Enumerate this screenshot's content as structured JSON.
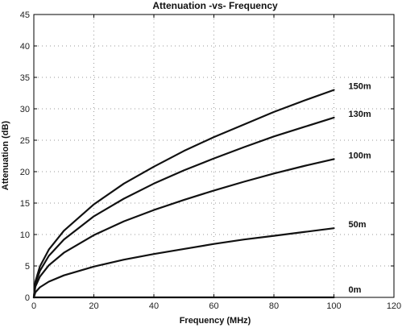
{
  "chart_data": {
    "type": "line",
    "title": "Attenuation -vs- Frequency",
    "xlabel": "Frequency (MHz)",
    "ylabel": "Attenuation (dB)",
    "xlim": [
      0,
      120
    ],
    "ylim": [
      0,
      45
    ],
    "xticks": [
      "0",
      "20",
      "40",
      "60",
      "80",
      "100",
      "120"
    ],
    "yticks": [
      "0",
      "5",
      "10",
      "15",
      "20",
      "25",
      "30",
      "35",
      "40",
      "45"
    ],
    "grid": true,
    "x": [
      0,
      0.5,
      2,
      5,
      10,
      20,
      30,
      40,
      50,
      60,
      70,
      80,
      90,
      100
    ],
    "series": [
      {
        "name": "150m",
        "values": [
          0,
          2.5,
          4.9,
          7.6,
          10.6,
          14.8,
          18.1,
          20.8,
          23.3,
          25.5,
          27.5,
          29.5,
          31.3,
          33.0
        ]
      },
      {
        "name": "130m",
        "values": [
          0,
          2.2,
          4.2,
          6.6,
          9.2,
          12.9,
          15.7,
          18.1,
          20.2,
          22.1,
          23.9,
          25.6,
          27.1,
          28.6
        ]
      },
      {
        "name": "100m",
        "values": [
          0,
          1.7,
          3.3,
          5.1,
          7.1,
          9.9,
          12.1,
          13.9,
          15.5,
          17.0,
          18.4,
          19.7,
          20.9,
          22.0
        ]
      },
      {
        "name": "50m",
        "values": [
          0,
          0.8,
          1.6,
          2.5,
          3.5,
          4.9,
          6.0,
          6.9,
          7.7,
          8.5,
          9.2,
          9.8,
          10.4,
          11.0
        ]
      },
      {
        "name": "0m",
        "values": [
          0,
          0,
          0,
          0,
          0,
          0,
          0,
          0,
          0,
          0,
          0,
          0,
          0,
          0
        ]
      }
    ]
  }
}
